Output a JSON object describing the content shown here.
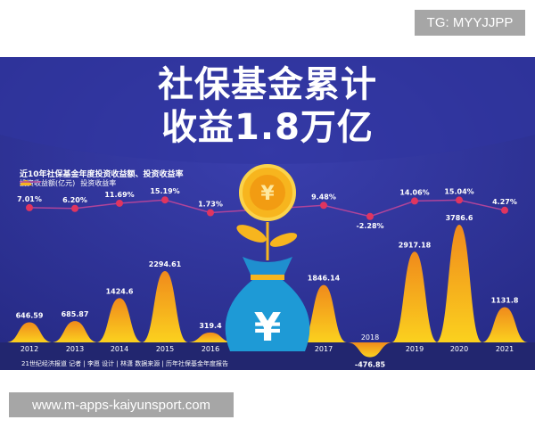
{
  "watermark_top": "TG: MYYJJPP",
  "watermark_bottom": "www.m-apps-kaiyunsport.com",
  "headline": [
    "社保基金累计",
    "收益1.8万亿"
  ],
  "credit": "21世纪经济报道  记者 | 李愿   设计 | 林潇   数据来源 | 历年社保基金年度报告",
  "colors": {
    "background": "#2b2f8f",
    "bars": "#f7a81b",
    "line": "#b0449a",
    "points": "#e0355f"
  },
  "icons": [
    "yuan-coin-icon",
    "sprout-icon",
    "money-bag-icon"
  ],
  "chart_data": {
    "type": "area+line",
    "title": "近10年社保基金年度投资收益额、投资收益率",
    "legend": [
      "投资收益额(亿元)",
      "投资收益率"
    ],
    "legend_placement": "top-left",
    "categories": [
      "2012",
      "2013",
      "2014",
      "2015",
      "2016",
      "2017",
      "2018",
      "2019",
      "2020",
      "2021"
    ],
    "series": [
      {
        "name": "投资收益额(亿元)",
        "type": "peak-area",
        "values": [
          646.59,
          685.87,
          1424.6,
          2294.61,
          319.4,
          1846.14,
          -476.85,
          2917.18,
          3786.6,
          1131.8
        ],
        "labels": [
          "646.59",
          "685.87",
          "1424.6",
          "2294.61",
          "319.4",
          "1846.14",
          "-476.85",
          "2917.18",
          "3786.6",
          "1131.8"
        ]
      },
      {
        "name": "投资收益率",
        "type": "line",
        "values": [
          7.01,
          6.2,
          11.69,
          15.19,
          1.73,
          9.48,
          -2.28,
          14.06,
          15.04,
          4.27
        ],
        "labels": [
          "7.01%",
          "6.20%",
          "11.69%",
          "15.19%",
          "1.73%",
          "9.48%",
          "-2.28%",
          "14.06%",
          "15.04%",
          "4.27%"
        ]
      }
    ],
    "grid": false
  }
}
